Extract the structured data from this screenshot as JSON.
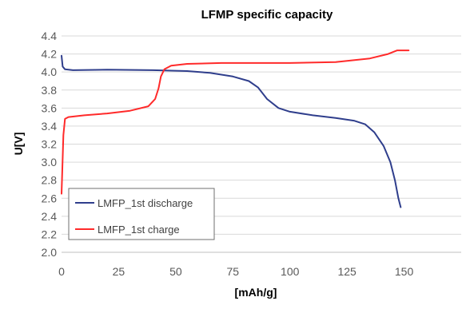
{
  "chart_data": {
    "type": "line",
    "title": "LFMP specific capacity",
    "xlabel": "[mAh/g]",
    "ylabel": "U[V]",
    "xlim": [
      0,
      175
    ],
    "ylim": [
      2.0,
      4.4
    ],
    "x_ticks": [
      "0",
      "25",
      "50",
      "75",
      "100",
      "125",
      "150"
    ],
    "y_ticks": [
      "2.0",
      "2.2",
      "2.4",
      "2.6",
      "2.8",
      "3.0",
      "3.2",
      "3.4",
      "3.6",
      "3.8",
      "4.0",
      "4.2",
      "4.4"
    ],
    "grid": "horizontal",
    "legend_position": "bottom-left",
    "series": [
      {
        "name": "LMFP_1st discharge",
        "color": "#2f3e8c",
        "points": [
          [
            0,
            4.18
          ],
          [
            0.5,
            4.06
          ],
          [
            1.5,
            4.03
          ],
          [
            5,
            4.02
          ],
          [
            20,
            4.025
          ],
          [
            40,
            4.02
          ],
          [
            55,
            4.01
          ],
          [
            65,
            3.99
          ],
          [
            75,
            3.95
          ],
          [
            82,
            3.9
          ],
          [
            86,
            3.83
          ],
          [
            90,
            3.7
          ],
          [
            95,
            3.6
          ],
          [
            100,
            3.56
          ],
          [
            110,
            3.52
          ],
          [
            120,
            3.49
          ],
          [
            128,
            3.46
          ],
          [
            133,
            3.42
          ],
          [
            137,
            3.33
          ],
          [
            141,
            3.18
          ],
          [
            144,
            3.0
          ],
          [
            146,
            2.8
          ],
          [
            147.5,
            2.6
          ],
          [
            148.5,
            2.5
          ]
        ]
      },
      {
        "name": "LMFP_1st charge",
        "color": "#ff2a2a",
        "points": [
          [
            0,
            2.65
          ],
          [
            0.3,
            2.9
          ],
          [
            0.8,
            3.3
          ],
          [
            1.5,
            3.48
          ],
          [
            3,
            3.5
          ],
          [
            10,
            3.52
          ],
          [
            20,
            3.54
          ],
          [
            30,
            3.57
          ],
          [
            38,
            3.62
          ],
          [
            41,
            3.7
          ],
          [
            42.5,
            3.82
          ],
          [
            43.5,
            3.95
          ],
          [
            45,
            4.03
          ],
          [
            48,
            4.07
          ],
          [
            55,
            4.09
          ],
          [
            70,
            4.1
          ],
          [
            100,
            4.1
          ],
          [
            120,
            4.11
          ],
          [
            135,
            4.15
          ],
          [
            143,
            4.2
          ],
          [
            147,
            4.24
          ],
          [
            152,
            4.24
          ]
        ]
      }
    ]
  }
}
